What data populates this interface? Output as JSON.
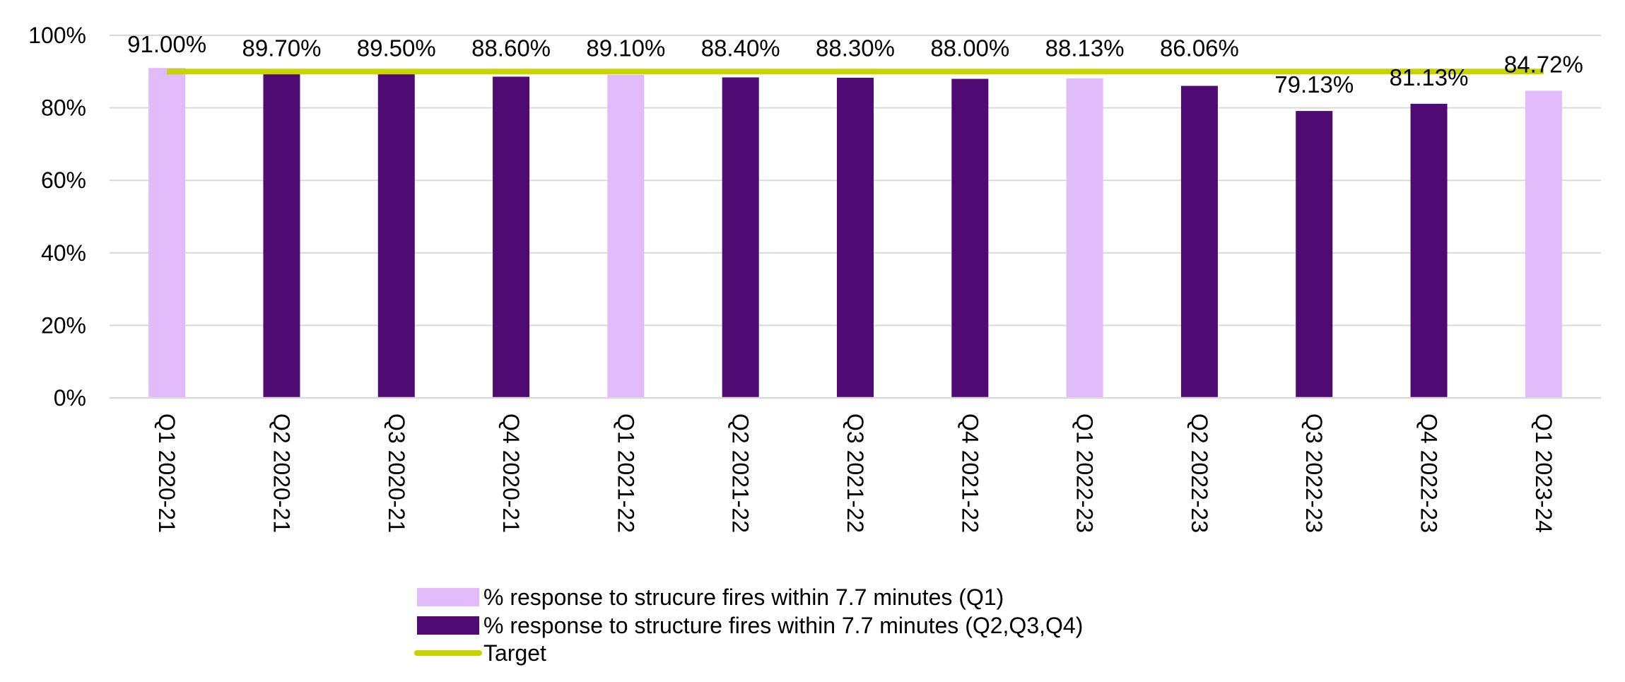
{
  "chart_data": {
    "type": "bar",
    "categories": [
      "Q1 2020-21",
      "Q2 2020-21",
      "Q3 2020-21",
      "Q4 2020-21",
      "Q1 2021-22",
      "Q2 2021-22",
      "Q3 2021-22",
      "Q4 2021-22",
      "Q1 2022-23",
      "Q2 2022-23",
      "Q3 2022-23",
      "Q4 2022-23",
      "Q1 2023-24"
    ],
    "values": [
      91.0,
      89.7,
      89.5,
      88.6,
      89.1,
      88.4,
      88.3,
      88.0,
      88.13,
      86.06,
      79.13,
      81.13,
      84.72
    ],
    "value_labels": [
      "91.00%",
      "89.70%",
      "89.50%",
      "88.60%",
      "89.10%",
      "88.40%",
      "88.30%",
      "88.00%",
      "88.13%",
      "86.06%",
      "79.13%",
      "81.13%",
      "84.72%"
    ],
    "bar_series": [
      "q1",
      "other",
      "other",
      "other",
      "q1",
      "other",
      "other",
      "other",
      "q1",
      "other",
      "other",
      "other",
      "q1"
    ],
    "series": [
      {
        "key": "q1",
        "name": "% response to strucure fires within 7.7 minutes (Q1)",
        "color": "#e1bbfa",
        "kind": "bar"
      },
      {
        "key": "other",
        "name": "% response to structure fires within 7.7 minutes (Q2,Q3,Q4)",
        "color": "#500a73",
        "kind": "bar"
      },
      {
        "key": "target",
        "name": "Target",
        "color": "#c8d400",
        "kind": "line",
        "value": 90
      }
    ],
    "y_ticks": [
      "0%",
      "20%",
      "40%",
      "60%",
      "80%",
      "100%"
    ],
    "ylim": [
      0,
      100
    ],
    "grid": true,
    "legend_position": "bottom"
  }
}
